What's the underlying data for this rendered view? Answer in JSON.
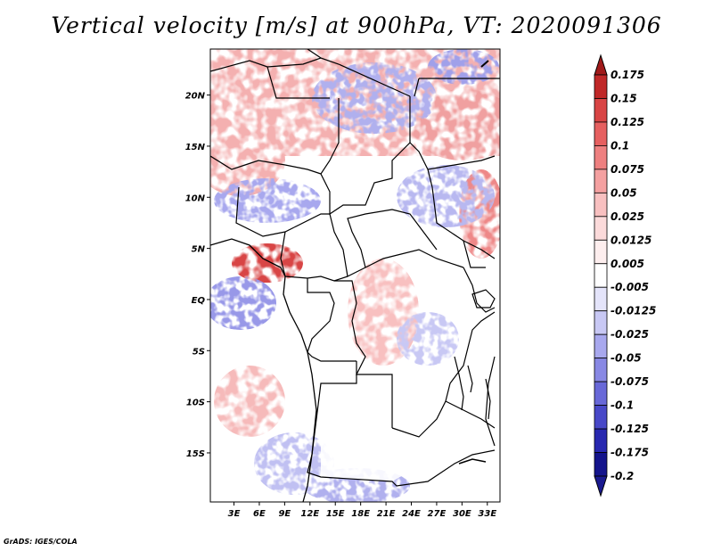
{
  "title": "Vertical velocity [m/s] at 900hPa, VT: 2020091306",
  "credit": "GrADS: IGES/COLA",
  "map": {
    "lat_ticks": [
      "20N",
      "15N",
      "10N",
      "5N",
      "EQ",
      "5S",
      "10S",
      "15S"
    ],
    "lon_ticks": [
      "3E",
      "6E",
      "9E",
      "12E",
      "15E",
      "18E",
      "21E",
      "24E",
      "27E",
      "30E",
      "33E"
    ],
    "lon_range": [
      0.2,
      34.5
    ],
    "lat_range": [
      -19.8,
      24.5
    ]
  },
  "colorbar": {
    "labels": [
      "0.175",
      "0.15",
      "0.125",
      "0.1",
      "0.075",
      "0.05",
      "0.025",
      "0.0125",
      "0.005",
      "-0.005",
      "-0.0125",
      "-0.025",
      "-0.05",
      "-0.075",
      "-0.1",
      "-0.125",
      "-0.175",
      "-0.2"
    ],
    "colors": [
      "#a01a1a",
      "#c02828",
      "#d84545",
      "#e66060",
      "#ee8080",
      "#f4a0a0",
      "#f8c0c0",
      "#fbdada",
      "#fdeeee",
      "#ffffff",
      "#e4e4fa",
      "#c8c8f4",
      "#a8a8ee",
      "#8888e4",
      "#6868d8",
      "#4848c8",
      "#2828b0",
      "#14148c",
      "#1a1a90"
    ]
  }
}
